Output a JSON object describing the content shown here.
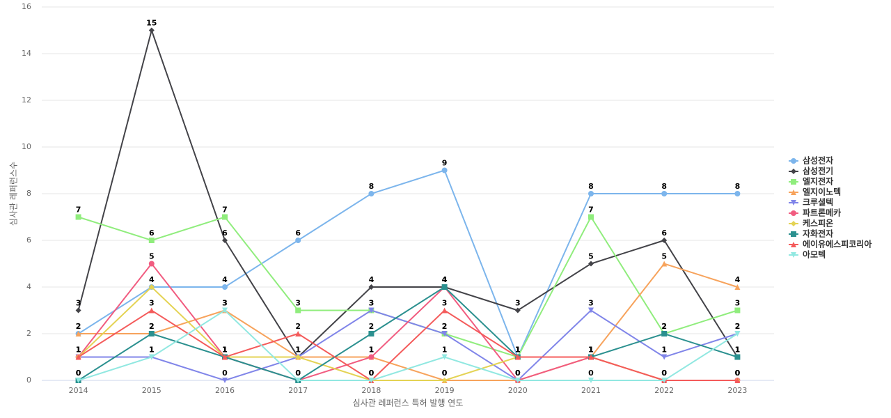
{
  "chart_data": {
    "type": "line",
    "y_label": "심사관 레퍼런스수",
    "x_label": "심사관 레퍼런스 특허 발행 연도",
    "categories": [
      "2014",
      "2015",
      "2016",
      "2017",
      "2018",
      "2019",
      "2020",
      "2021",
      "2022",
      "2023"
    ],
    "ylim": [
      0,
      16
    ],
    "yticks": [
      0,
      2,
      4,
      6,
      8,
      10,
      12,
      14,
      16
    ],
    "grid": true,
    "legend": "right",
    "series": [
      {
        "name": "삼성전자",
        "color": "#7cb5ec",
        "marker": "circle",
        "values": [
          2,
          4,
          4,
          6,
          8,
          9,
          1,
          8,
          8,
          8
        ]
      },
      {
        "name": "삼성전기",
        "color": "#434348",
        "marker": "diamond",
        "values": [
          3,
          15,
          6,
          1,
          4,
          4,
          3,
          5,
          6,
          1
        ]
      },
      {
        "name": "엘지전자",
        "color": "#90ed7d",
        "marker": "square",
        "values": [
          7,
          6,
          7,
          3,
          3,
          2,
          1,
          7,
          2,
          3
        ]
      },
      {
        "name": "엘지이노텍",
        "color": "#f7a35c",
        "marker": "triangle",
        "values": [
          2,
          2,
          3,
          1,
          1,
          0,
          0,
          1,
          5,
          4
        ]
      },
      {
        "name": "크루셜텍",
        "color": "#8085e9",
        "marker": "triangle-down",
        "values": [
          1,
          1,
          0,
          1,
          3,
          2,
          0,
          3,
          1,
          2
        ]
      },
      {
        "name": "파트론메카",
        "color": "#f15c80",
        "marker": "circle",
        "values": [
          1,
          5,
          1,
          0,
          1,
          4,
          0,
          1,
          0,
          0
        ]
      },
      {
        "name": "케스피온",
        "color": "#e4d354",
        "marker": "diamond",
        "values": [
          1,
          4,
          1,
          1,
          0,
          0,
          1,
          1,
          0,
          0
        ]
      },
      {
        "name": "자화전자",
        "color": "#2b908f",
        "marker": "square",
        "values": [
          0,
          2,
          1,
          0,
          2,
          4,
          1,
          1,
          2,
          1
        ]
      },
      {
        "name": "에이유에스피코리아",
        "color": "#f45b5b",
        "marker": "triangle",
        "values": [
          1,
          3,
          1,
          2,
          0,
          3,
          1,
          1,
          0,
          0
        ]
      },
      {
        "name": "아모텍",
        "color": "#91e8e1",
        "marker": "triangle-down",
        "values": [
          0,
          1,
          3,
          0,
          0,
          1,
          0,
          0,
          0,
          2
        ]
      }
    ]
  }
}
